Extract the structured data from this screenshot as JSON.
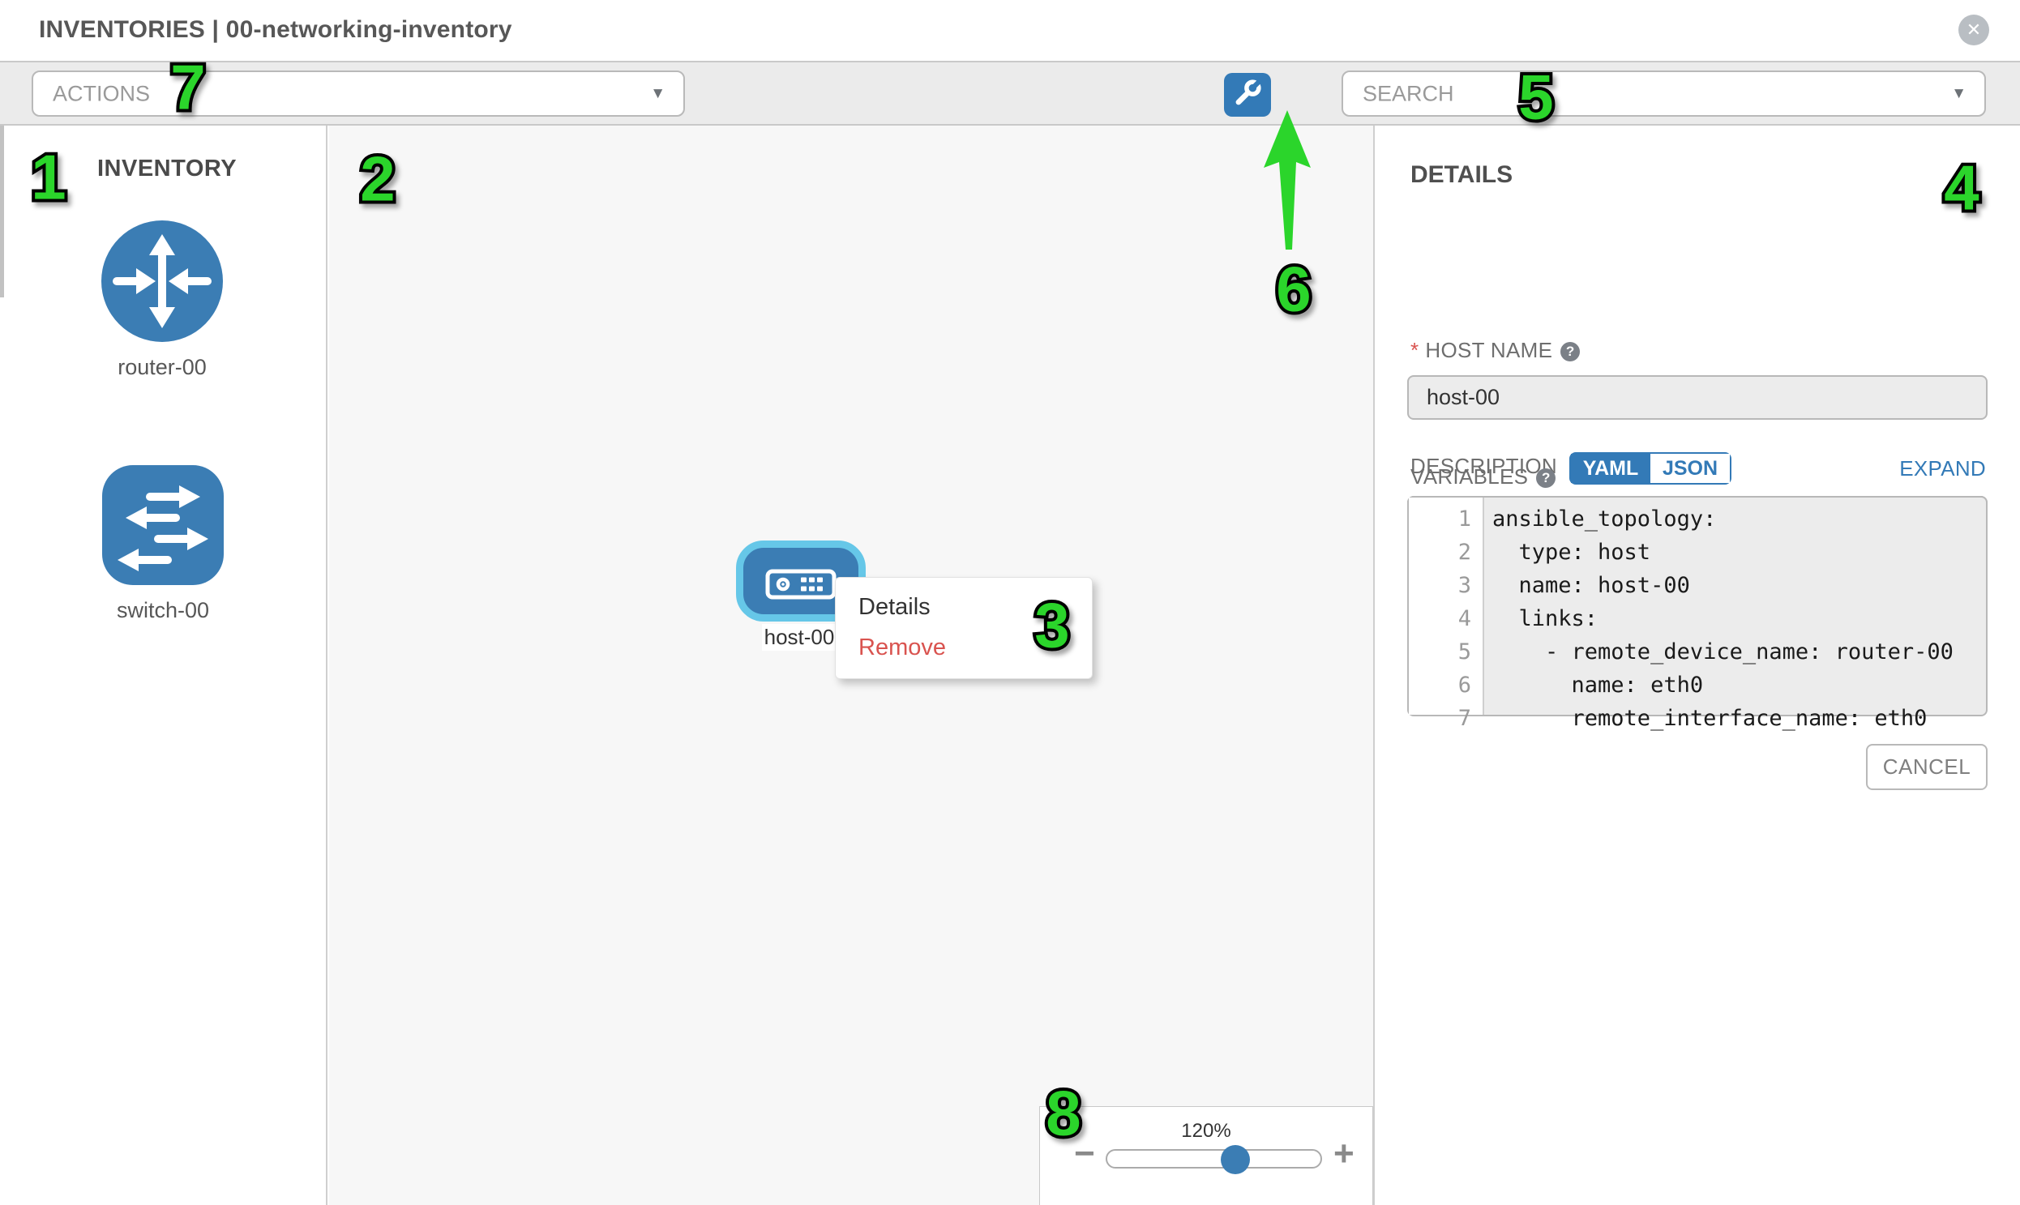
{
  "header": {
    "title": "INVENTORIES | 00-networking-inventory",
    "close_glyph": "✕"
  },
  "toolbar": {
    "actions_placeholder": "ACTIONS",
    "search_placeholder": "SEARCH",
    "caret_glyph": "▼"
  },
  "sidebar": {
    "heading": "INVENTORY",
    "devices": [
      {
        "type": "router",
        "label": "router-00"
      },
      {
        "type": "switch",
        "label": "switch-00"
      }
    ]
  },
  "canvas": {
    "node": {
      "type": "host",
      "label": "host-00"
    },
    "context_menu": {
      "items": [
        {
          "label": "Details"
        },
        {
          "label": "Remove"
        }
      ]
    },
    "zoom_control": {
      "level": "120%",
      "minus_glyph": "−",
      "plus_glyph": "+",
      "slider_percent": 60
    }
  },
  "details_panel": {
    "heading": "DETAILS",
    "required_mark": "*",
    "host_name_label": "HOST NAME",
    "help_glyph": "?",
    "host_name_value": "host-00",
    "description_label": "DESCRIPTION",
    "description_value": "",
    "variables_label": "VARIABLES",
    "yaml_label": "YAML",
    "json_label": "JSON",
    "expand_label": "EXPAND",
    "cancel_label": "CANCEL",
    "code": {
      "lines": [
        {
          "num": "1",
          "text": "ansible_topology:"
        },
        {
          "num": "2",
          "text": "  type: host"
        },
        {
          "num": "3",
          "text": "  name: host-00"
        },
        {
          "num": "4",
          "text": "  links:"
        },
        {
          "num": "5",
          "text": "    - remote_device_name: router-00"
        },
        {
          "num": "6",
          "text": "      name: eth0"
        },
        {
          "num": "7",
          "text": "      remote_interface_name: eth0"
        }
      ]
    }
  },
  "annotations": {
    "items": [
      {
        "label": "1"
      },
      {
        "label": "2"
      },
      {
        "label": "3"
      },
      {
        "label": "4"
      },
      {
        "label": "5"
      },
      {
        "label": "6"
      },
      {
        "label": "7"
      },
      {
        "label": "8"
      }
    ]
  },
  "colors": {
    "brand_blue": "#337ab7",
    "node_blue": "#3b7db4",
    "selected_border": "#66c7e8",
    "remove_red": "#d9534f",
    "annotation_green": "#2bd52b"
  }
}
